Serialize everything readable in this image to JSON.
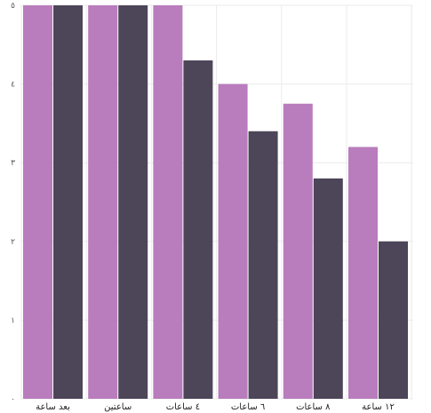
{
  "chart_data": {
    "type": "bar",
    "categories": [
      "بعد ساعة",
      "ساعتين",
      "٤ ساعات",
      "٦ ساعات",
      "٨ ساعات",
      "١٢ ساعة"
    ],
    "series": [
      {
        "color": "#b97cbd",
        "values": [
          5,
          5,
          5,
          4,
          3.75,
          3.2
        ]
      },
      {
        "color": "#4d4558",
        "values": [
          5,
          5,
          4.3,
          3.4,
          2.8,
          2.0
        ]
      }
    ],
    "y_ticks": [
      0,
      1,
      2,
      3,
      4,
      5
    ],
    "y_tick_labels": [
      "٠",
      "١",
      "٢",
      "٣",
      "٤",
      "٥"
    ],
    "ylim": [
      0,
      5
    ],
    "grid": true,
    "legend": "none",
    "title": "",
    "xlabel": "",
    "ylabel": ""
  }
}
